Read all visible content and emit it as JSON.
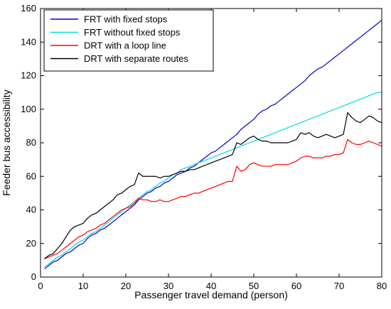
{
  "chart_data": {
    "type": "line",
    "title": "",
    "xlabel": "Passenger travel demand (person)",
    "ylabel": "Feeder bus accessibility",
    "xlim": [
      0,
      80
    ],
    "ylim": [
      0,
      160
    ],
    "xticks": [
      0,
      10,
      20,
      30,
      40,
      50,
      60,
      70,
      80
    ],
    "yticks": [
      0,
      20,
      40,
      60,
      80,
      100,
      120,
      140,
      160
    ],
    "grid": false,
    "legend_position": "top-left",
    "x": [
      1,
      2,
      3,
      4,
      5,
      6,
      7,
      8,
      9,
      10,
      11,
      12,
      13,
      14,
      15,
      16,
      17,
      18,
      19,
      20,
      21,
      22,
      23,
      24,
      25,
      26,
      27,
      28,
      29,
      30,
      31,
      32,
      33,
      34,
      35,
      36,
      37,
      38,
      39,
      40,
      41,
      42,
      43,
      44,
      45,
      46,
      47,
      48,
      49,
      50,
      51,
      52,
      53,
      54,
      55,
      56,
      57,
      58,
      59,
      60,
      61,
      62,
      63,
      64,
      65,
      66,
      67,
      68,
      69,
      70,
      71,
      72,
      73,
      74,
      75,
      76,
      77,
      78,
      79,
      80
    ],
    "series": [
      {
        "name": "FRT with fixed stops",
        "color": "#0000cc",
        "values": [
          5,
          7,
          9,
          10,
          12,
          14,
          15,
          17,
          19,
          20,
          23,
          25,
          26,
          28,
          29,
          31,
          33,
          35,
          37,
          39,
          41,
          43,
          46,
          48,
          50,
          51,
          53,
          54,
          56,
          57,
          59,
          61,
          62,
          63,
          65,
          66,
          68,
          70,
          72,
          74,
          75,
          77,
          79,
          81,
          83,
          85,
          88,
          90,
          92,
          94,
          97,
          99,
          100,
          102,
          103,
          105,
          107,
          109,
          111,
          113,
          115,
          117,
          120,
          122,
          124,
          125,
          127,
          129,
          131,
          133,
          135,
          137,
          139,
          141,
          143,
          145,
          147,
          149,
          151,
          153
        ]
      },
      {
        "name": "FRT without fixed stops",
        "color": "#00dddd",
        "values": [
          6,
          8,
          10,
          12,
          13,
          15,
          17,
          19,
          21,
          22,
          24,
          26,
          27,
          29,
          31,
          33,
          35,
          37,
          39,
          41,
          43,
          45,
          47,
          49,
          51,
          52,
          54,
          56,
          57,
          59,
          61,
          62,
          64,
          65,
          66,
          67,
          68,
          69,
          70,
          71,
          72,
          73,
          74,
          75,
          76,
          77,
          78,
          79,
          80,
          81,
          82,
          83,
          84,
          85,
          86,
          87,
          88,
          89,
          90,
          91,
          92,
          93,
          94,
          95,
          96,
          97,
          98,
          99,
          100,
          101,
          102,
          103,
          104,
          105,
          106,
          107,
          108,
          109,
          110,
          110
        ]
      },
      {
        "name": "DRT with a loop line",
        "color": "#ff0000",
        "values": [
          11,
          12,
          13,
          14,
          16,
          18,
          20,
          22,
          24,
          25,
          27,
          28,
          29,
          31,
          32,
          34,
          36,
          38,
          40,
          41,
          42,
          44,
          47,
          46,
          46,
          45,
          45,
          46,
          45,
          45,
          46,
          47,
          48,
          48,
          49,
          50,
          50,
          51,
          52,
          53,
          54,
          55,
          56,
          57,
          57,
          66,
          63,
          64,
          67,
          68,
          67,
          66,
          66,
          66,
          67,
          67,
          67,
          67,
          68,
          69,
          71,
          72,
          72,
          71,
          71,
          71,
          72,
          72,
          73,
          73,
          74,
          82,
          80,
          79,
          79,
          80,
          81,
          80,
          79,
          78
        ]
      },
      {
        "name": "DRT with separate routes",
        "color": "#000000",
        "values": [
          11,
          13,
          14,
          17,
          20,
          24,
          28,
          30,
          31,
          32,
          35,
          37,
          38,
          40,
          42,
          44,
          46,
          49,
          50,
          52,
          54,
          55,
          62,
          60,
          60,
          60,
          60,
          59,
          60,
          60,
          61,
          62,
          63,
          63,
          64,
          64,
          65,
          66,
          67,
          68,
          69,
          70,
          71,
          72,
          73,
          80,
          79,
          81,
          83,
          84,
          82,
          81,
          81,
          80,
          80,
          80,
          80,
          80,
          81,
          82,
          86,
          85,
          86,
          84,
          83,
          84,
          85,
          84,
          83,
          84,
          85,
          98,
          95,
          93,
          92,
          94,
          96,
          95,
          93,
          92
        ]
      }
    ]
  }
}
